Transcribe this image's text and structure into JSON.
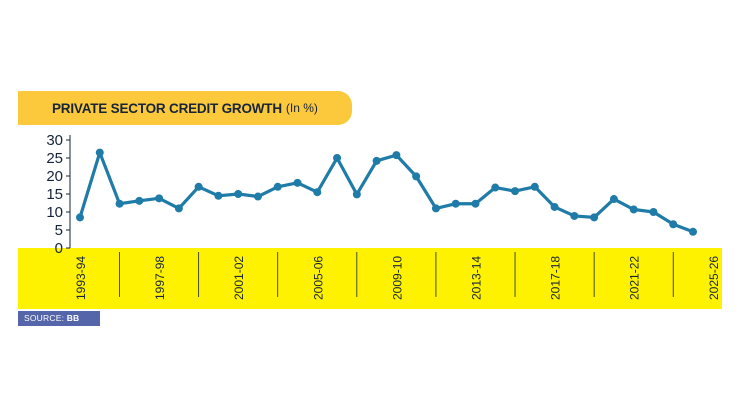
{
  "title": {
    "main": "PRIVATE SECTOR CREDIT GROWTH",
    "unit": "(In %)"
  },
  "source": {
    "label": "SOURCE:",
    "value": "BB"
  },
  "colors": {
    "banner": "#fbc93b",
    "axis_band": "#fff200",
    "line": "#1f7ba7",
    "source_bg": "#5565a9",
    "text": "#16243a"
  },
  "chart_data": {
    "type": "line",
    "title": "PRIVATE SECTOR CREDIT GROWTH (In %)",
    "xlabel": "",
    "ylabel": "",
    "ylim": [
      0,
      30
    ],
    "yticks": [
      0,
      5,
      10,
      15,
      20,
      25,
      30
    ],
    "xtick_labels": [
      "1993-94",
      "1997-98",
      "2001-02",
      "2005-06",
      "2009-10",
      "2013-14",
      "2017-18",
      "2021-22",
      "2025-26"
    ],
    "grid": false,
    "series": [
      {
        "values": [
          8.5,
          26.5,
          12.3,
          13.1,
          13.8,
          11.0,
          17.0,
          14.5,
          15.0,
          14.3,
          17.0,
          18.1,
          15.5,
          25.0,
          14.9,
          24.2,
          25.8,
          19.9,
          11.0,
          12.3,
          12.3,
          16.8,
          15.8,
          17.0,
          11.4,
          8.9,
          8.5,
          13.6,
          10.7,
          10.0,
          6.6,
          4.5
        ]
      }
    ]
  }
}
